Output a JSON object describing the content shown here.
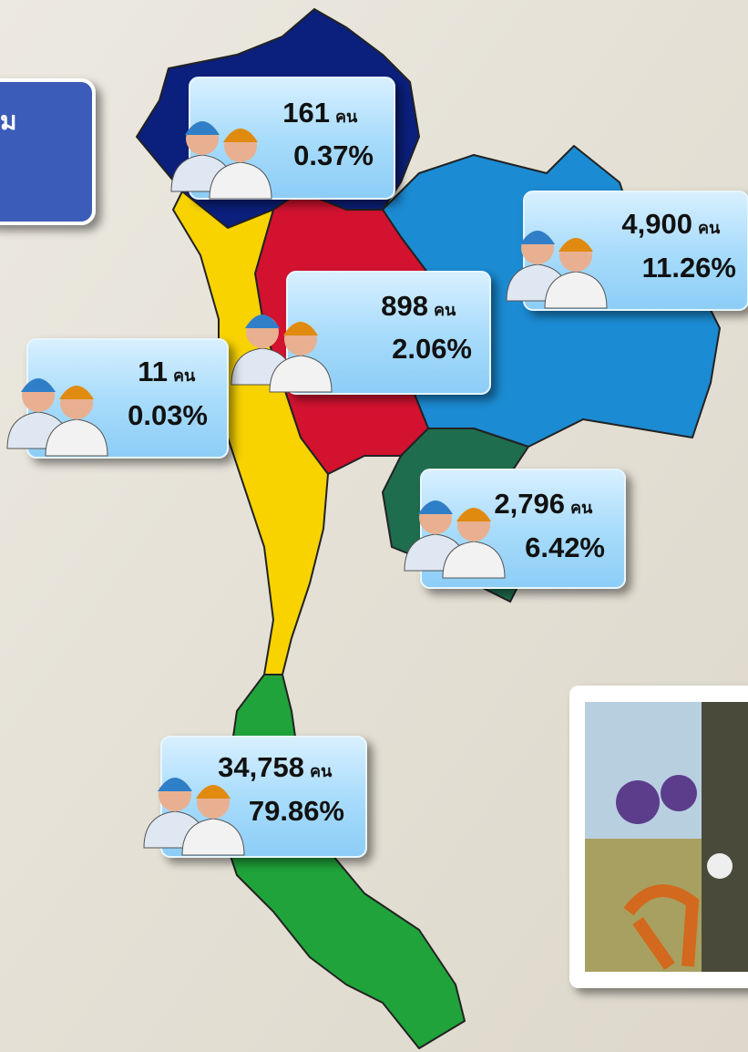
{
  "header": {
    "title_fragment": "ม"
  },
  "regions": [
    {
      "count": "161",
      "unit": "คน",
      "percent": "0.37%"
    },
    {
      "count": "4,900",
      "unit": "คน",
      "percent": "11.26%"
    },
    {
      "count": "898",
      "unit": "คน",
      "percent": "2.06%"
    },
    {
      "count": "11",
      "unit": "คน",
      "percent": "0.03%"
    },
    {
      "count": "2,796",
      "unit": "คน",
      "percent": "6.42%"
    },
    {
      "count": "34,758",
      "unit": "คน",
      "percent": "79.86%"
    }
  ]
}
